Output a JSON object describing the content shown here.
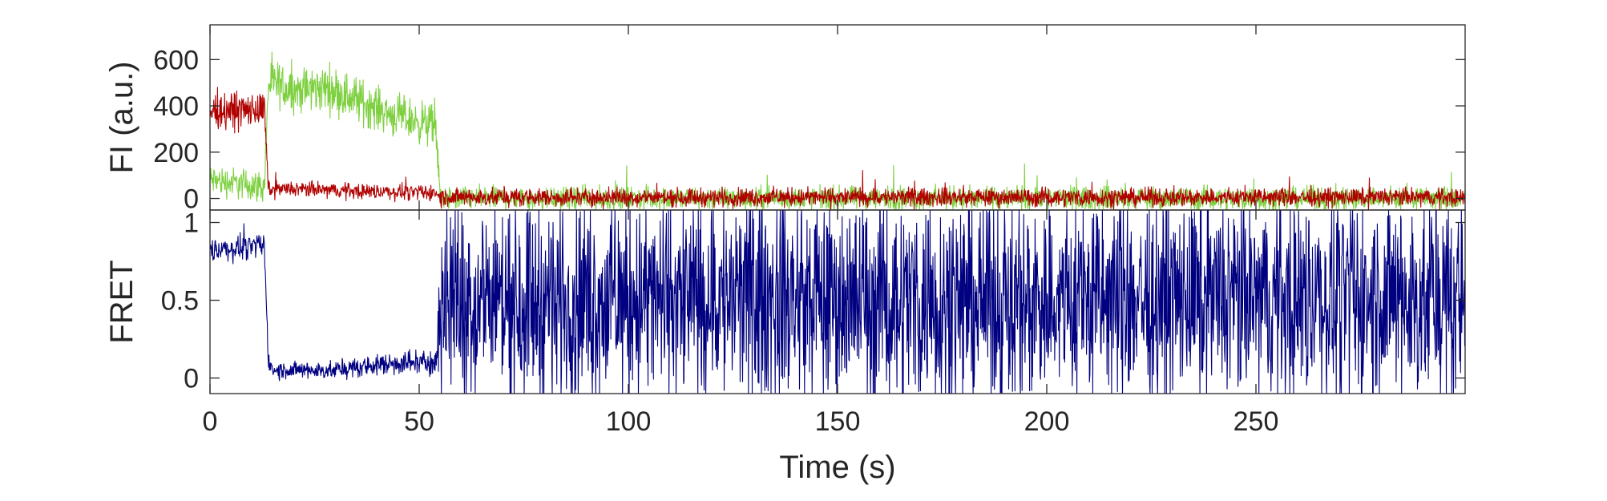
{
  "colors": {
    "donor": "#7ED040",
    "acceptor": "#B00000",
    "fret": "#000080",
    "axis": "#262626"
  },
  "chart_data": [
    {
      "type": "line",
      "panel": "top",
      "xlabel": "",
      "ylabel": "FI (a.u.)",
      "xlim": [
        0,
        300
      ],
      "ylim": [
        -50,
        750
      ],
      "yticks": [
        0,
        200,
        400,
        600
      ],
      "ytick_labels": [
        "0",
        "200",
        "400",
        "600"
      ],
      "grid": false,
      "series": [
        {
          "name": "",
          "color_key": "donor",
          "x": [
            0,
            13,
            14,
            20,
            25,
            28,
            32,
            36,
            40,
            44,
            48,
            52,
            54,
            55,
            88,
            300
          ],
          "y": [
            80,
            50,
            500,
            470,
            470,
            480,
            450,
            420,
            390,
            360,
            340,
            320,
            310,
            0,
            0,
            0
          ],
          "noise": [
            60,
            60,
            90,
            90,
            90,
            90,
            90,
            90,
            80,
            80,
            80,
            80,
            80,
            45,
            45,
            45
          ]
        },
        {
          "name": "",
          "color_key": "acceptor",
          "x": [
            0,
            13,
            14,
            20,
            30,
            40,
            50,
            54,
            55,
            300
          ],
          "y": [
            380,
            380,
            40,
            40,
            35,
            30,
            25,
            25,
            5,
            5
          ],
          "noise": [
            70,
            70,
            30,
            30,
            30,
            30,
            30,
            30,
            35,
            35
          ]
        }
      ]
    },
    {
      "type": "line",
      "panel": "bottom",
      "xlabel": "Time (s)",
      "ylabel": "FRET",
      "xlim": [
        0,
        300
      ],
      "ylim": [
        -0.1,
        1.08
      ],
      "xticks": [
        0,
        50,
        100,
        150,
        200,
        250
      ],
      "xtick_labels": [
        "0",
        "50",
        "100",
        "150",
        "200",
        "250"
      ],
      "yticks": [
        0,
        0.5,
        1
      ],
      "ytick_labels": [
        "0",
        "0.5",
        "1"
      ],
      "grid": false,
      "series": [
        {
          "name": "",
          "color_key": "fret",
          "x": [
            0,
            13,
            14,
            15,
            30,
            45,
            54,
            55,
            300
          ],
          "y": [
            0.82,
            0.85,
            0.1,
            0.05,
            0.05,
            0.1,
            0.1,
            0.5,
            0.5
          ],
          "noise": [
            0.07,
            0.07,
            0.05,
            0.05,
            0.05,
            0.07,
            0.07,
            0.6,
            0.6
          ]
        }
      ]
    }
  ]
}
